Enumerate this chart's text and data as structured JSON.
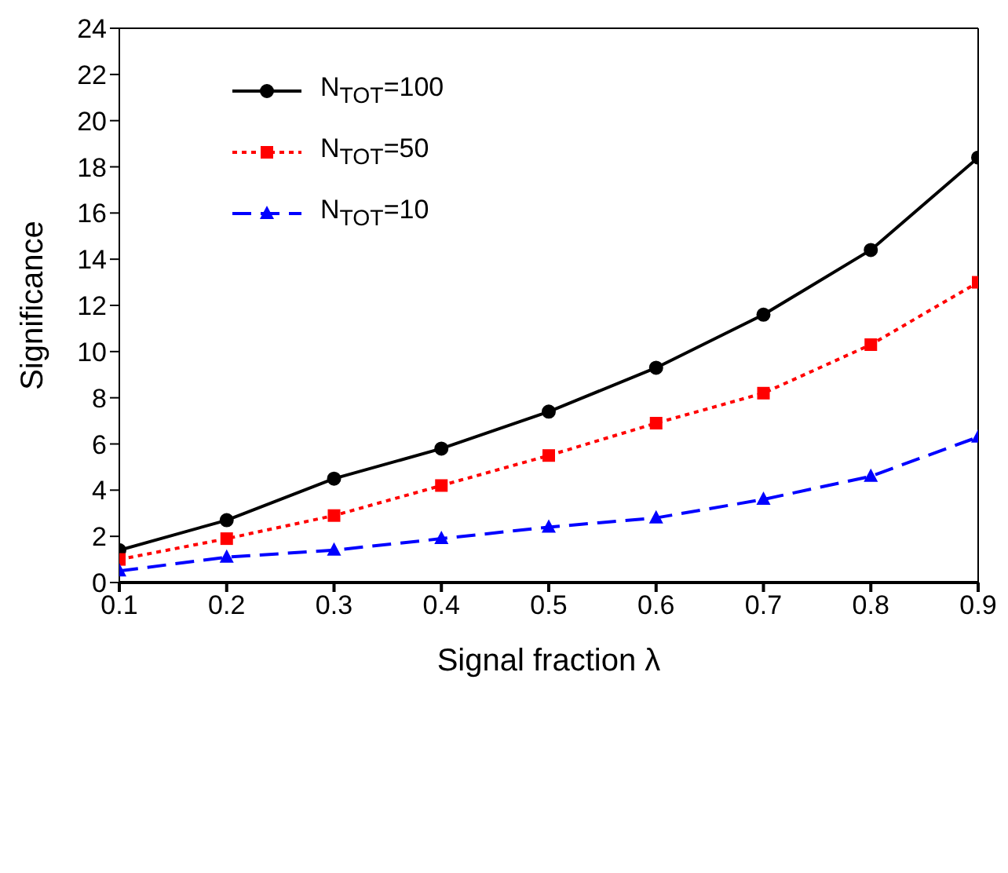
{
  "chart_data": {
    "type": "line",
    "xlabel": "Signal fraction λ",
    "ylabel": "Significance",
    "x": [
      0.1,
      0.2,
      0.3,
      0.4,
      0.5,
      0.6,
      0.7,
      0.8,
      0.9
    ],
    "xlim": [
      0.1,
      0.9
    ],
    "xticks": [
      0.1,
      0.2,
      0.3,
      0.4,
      0.5,
      0.6,
      0.7,
      0.8,
      0.9
    ],
    "ylim": [
      0,
      24
    ],
    "yticks": [
      0,
      2,
      4,
      6,
      8,
      10,
      12,
      14,
      16,
      18,
      20,
      22,
      24
    ],
    "grid": false,
    "legend": "top left",
    "series": [
      {
        "name": "N$_{TOT}$=100",
        "color": "#000000",
        "marker": "circle",
        "line_style": "solid",
        "values": [
          1.4,
          2.7,
          4.5,
          5.8,
          7.4,
          9.3,
          11.6,
          14.4,
          18.4
        ]
      },
      {
        "name": "N$_{TOT}$=50",
        "color": "#ff0000",
        "marker": "square",
        "line_style": "dotted",
        "values": [
          1.0,
          1.9,
          2.9,
          4.2,
          5.5,
          6.9,
          8.2,
          10.3,
          13.0
        ]
      },
      {
        "name": "N$_{TOT}$=10",
        "color": "#0000ff",
        "marker": "triangle",
        "line_style": "dashed",
        "values": [
          0.5,
          1.1,
          1.4,
          1.9,
          2.4,
          2.8,
          3.6,
          4.6,
          6.3
        ]
      }
    ]
  }
}
